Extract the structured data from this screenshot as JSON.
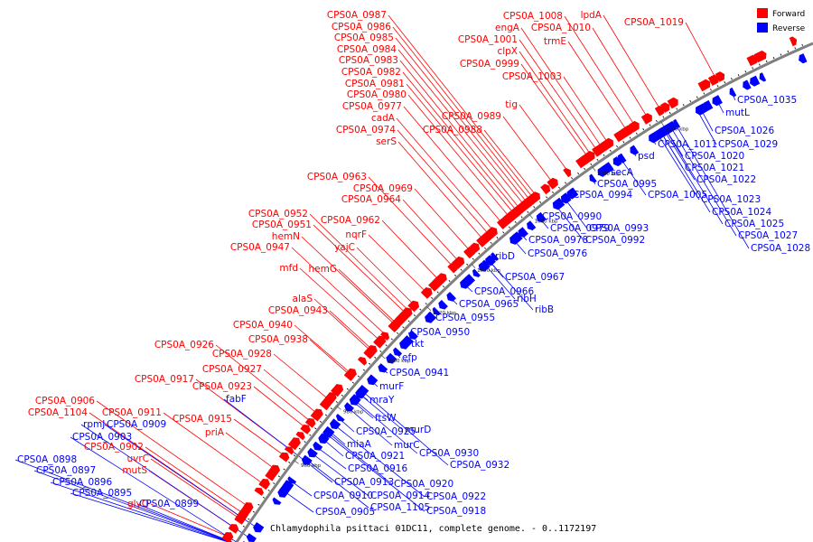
{
  "caption": "Chlamydophila psittaci 01DC11, complete genome. - 0..1172197",
  "legend": {
    "forward": {
      "label": "Forward",
      "color": "#ff0000"
    },
    "reverse": {
      "label": "Reverse",
      "color": "#0000ff"
    }
  },
  "backbone_color": "#808080",
  "scale_ticks": [
    "960 kbp",
    "980 kbp",
    "1000 kbp",
    "1020 kbp",
    "1040 kbp",
    "1060 kbp",
    "1080 kbp",
    "1100 kbp"
  ],
  "forward_labels": [
    "CPS0A_0987",
    "CPS0A_0986",
    "CPS0A_0985",
    "CPS0A_0984",
    "CPS0A_0983",
    "CPS0A_0982",
    "CPS0A_0981",
    "CPS0A_0980",
    "CPS0A_0977",
    "cadA",
    "CPS0A_0974",
    "serS",
    "CPS0A_0989",
    "CPS0A_0988",
    "CPS0A_1008",
    "engA",
    "CPS0A_1001",
    "clpX",
    "CPS0A_0999",
    "CPS0A_1003",
    "tig",
    "lpdA",
    "CPS0A_1010",
    "trmE",
    "CPS0A_1019",
    "CPS0A_0963",
    "CPS0A_0969",
    "CPS0A_0964",
    "CPS0A_0952",
    "CPS0A_0951",
    "CPS0A_0962",
    "hemN",
    "CPS0A_0947",
    "nqrF",
    "yajC",
    "mfd",
    "hemG",
    "alaS",
    "CPS0A_0943",
    "CPS0A_0940",
    "CPS0A_0938",
    "CPS0A_0926",
    "CPS0A_0928",
    "CPS0A_0927",
    "CPS0A_0917",
    "CPS0A_0923",
    "CPS0A_0906",
    "CPS0A_1104",
    "CPS0A_0911",
    "CPS0A_0915",
    "priA",
    "CPS0A_0902",
    "uvrC",
    "mutS",
    "glyQ"
  ],
  "reverse_labels": [
    "CPS0A_1035",
    "mutL",
    "CPS0A_1026",
    "CPS0A_1029",
    "CPS0A_1011",
    "CPS0A_1020",
    "CPS0A_1021",
    "CPS0A_1022",
    "CPS0A_1023",
    "CPS0A_1024",
    "CPS0A_1025",
    "CPS0A_1027",
    "CPS0A_1028",
    "psd",
    "secA",
    "CPS0A_0995",
    "CPS0A_1005",
    "CPS0A_0994",
    "CPS0A_0990",
    "CPS0A_0979",
    "CPS0A_0993",
    "CPS0A_0978",
    "CPS0A_0992",
    "CPS0A_0976",
    "ribD",
    "CPS0A_0967",
    "CPS0A_0966",
    "ribH",
    "CPS0A_0965",
    "ribB",
    "CPS0A_0955",
    "CPS0A_0950",
    "tkt",
    "efp",
    "CPS0A_0941",
    "murF",
    "mraY",
    "ftsW",
    "murD",
    "CPS0A_0925",
    "murC",
    "CPS0A_0930",
    "miaA",
    "CPS0A_0921",
    "CPS0A_0932",
    "CPS0A_0916",
    "CPS0A_0913",
    "CPS0A_0920",
    "CPS0A_0910",
    "CPS0A_0914",
    "CPS0A_0922",
    "CPS0A_1105",
    "CPS0A_0918",
    "CPS0A_0905",
    "CPS0A_0899",
    "rpmJ",
    "CPS0A_0909",
    "CPS0A_0903",
    "fabF",
    "CPS0A_0898",
    "CPS0A_0897",
    "CPS0A_0896",
    "CPS0A_0895"
  ]
}
